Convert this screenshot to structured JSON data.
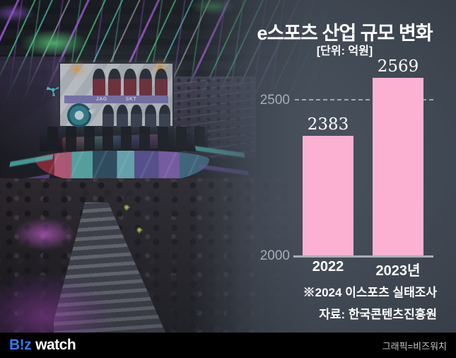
{
  "header": {
    "title": "e스포츠 산업 규모 변화",
    "unit_label": "[단위: 억원]"
  },
  "chart_data": {
    "type": "bar",
    "title": "e스포츠 산업 규모 변화",
    "unit": "억원",
    "categories": [
      "2022",
      "2023년"
    ],
    "values": [
      2383,
      2569
    ],
    "yticks": [
      2000,
      2500
    ],
    "baseline": 2000,
    "ylim": [
      2000,
      2650
    ],
    "gridline": {
      "value": 2500,
      "style": "dashed"
    },
    "bar_color": "#FCB1D3",
    "legend": "none",
    "notes": [
      "※2024 이스포츠 실태조사",
      "자료: 한국콘텐츠진흥원"
    ]
  },
  "notes": {
    "survey": "※2024 이스포츠 실태조사",
    "source": "자료: 한국콘텐츠진흥원"
  },
  "photo": {
    "description": "esports arena with jumbotron, stage and audience",
    "screen": {
      "team_left": "JAG",
      "team_right": "SKT"
    }
  },
  "footer": {
    "logo_biz": "B!z",
    "logo_watch": "watch",
    "credit": "그래픽=비즈워치"
  },
  "colors": {
    "bar_pink": "#FCB1D3",
    "panel_slate": "#49525E",
    "logo_blue": "#2E7BF2",
    "footer_black": "#000000"
  }
}
